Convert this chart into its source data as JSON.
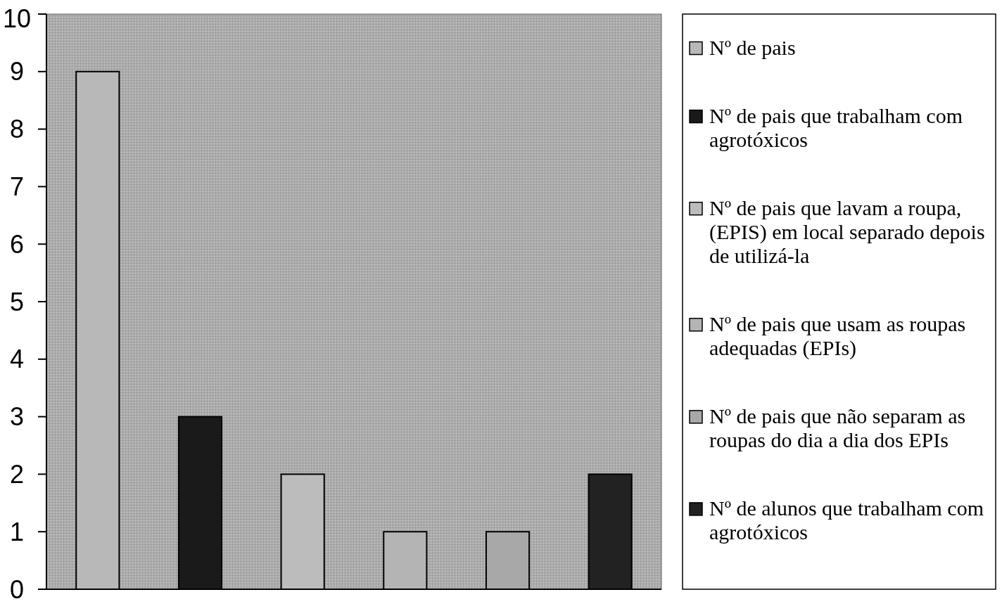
{
  "chart_data": {
    "type": "bar",
    "categories": [
      null,
      null,
      null,
      null,
      null,
      null
    ],
    "series": [
      {
        "name": "Nº de pais",
        "color": "#b8b8b8",
        "values": [
          9,
          null,
          null,
          null,
          null,
          null
        ]
      },
      {
        "name": "Nº de pais que trabalham com agrotóxicos",
        "color": "#1a1a1a",
        "values": [
          null,
          3,
          null,
          null,
          null,
          null
        ]
      },
      {
        "name": "Nº de pais que lavam a roupa, (EPIS) em local separado depois de utilizá-la",
        "color": "#bcbcbc",
        "values": [
          null,
          null,
          2,
          null,
          null,
          null
        ]
      },
      {
        "name": "Nº de pais que usam as roupas adequadas (EPIs)",
        "color": "#b4b4b4",
        "values": [
          null,
          null,
          null,
          1,
          null,
          null
        ]
      },
      {
        "name": "Nº de pais que não separam as roupas do dia a dia dos EPIs",
        "color": "#a8a8a8",
        "values": [
          null,
          null,
          null,
          null,
          1,
          null
        ]
      },
      {
        "name": "Nº de alunos que trabalham com agrotóxicos",
        "color": "#222222",
        "values": [
          null,
          null,
          null,
          null,
          null,
          2
        ]
      }
    ],
    "ylim": [
      0,
      10
    ],
    "yticks": [
      0,
      1,
      2,
      3,
      4,
      5,
      6,
      7,
      8,
      9,
      10
    ],
    "legend": "right"
  }
}
